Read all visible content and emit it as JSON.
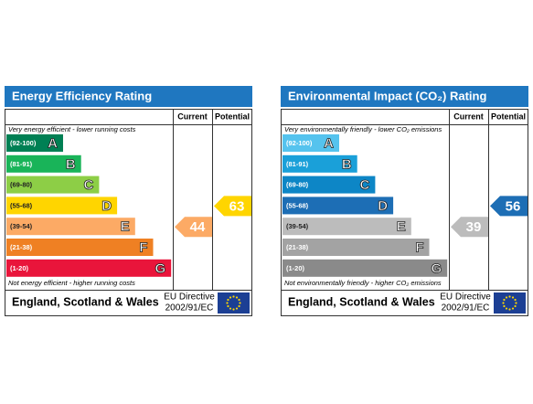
{
  "chart_data": [
    {
      "type": "epc",
      "title": "Energy Efficiency Rating",
      "columns": [
        "Current",
        "Potential"
      ],
      "top_note": "Very energy efficient - lower running costs",
      "bottom_note": "Not energy efficient - higher running costs",
      "categories": [
        "A",
        "B",
        "C",
        "D",
        "E",
        "F",
        "G"
      ],
      "range_labels": [
        "(92-100)",
        "(81-91)",
        "(69-80)",
        "(55-68)",
        "(39-54)",
        "(21-38)",
        "(1-20)"
      ],
      "colors": [
        "#008054",
        "#19b459",
        "#8dce46",
        "#ffd500",
        "#fcaa65",
        "#ef8023",
        "#e9153b"
      ],
      "current": 44,
      "potential": 63,
      "footer": "England, Scotland & Wales",
      "directive": [
        "EU Directive",
        "2002/91/EC"
      ]
    },
    {
      "type": "epc",
      "title": "Environmental Impact (CO₂) Rating",
      "columns": [
        "Current",
        "Potential"
      ],
      "top_note": "Very environmentally friendly - lower CO₂ emissions",
      "bottom_note": "Not environmentally friendly - higher CO₂ emissions",
      "categories": [
        "A",
        "B",
        "C",
        "D",
        "E",
        "F",
        "G"
      ],
      "range_labels": [
        "(92-100)",
        "(81-91)",
        "(69-80)",
        "(55-68)",
        "(39-54)",
        "(21-38)",
        "(1-20)"
      ],
      "colors": [
        "#55c3ee",
        "#1aa0d9",
        "#0d86c6",
        "#1d6eb5",
        "#bcbcbc",
        "#a3a3a3",
        "#8a8a8a"
      ],
      "current": 39,
      "potential": 56,
      "footer": "England, Scotland & Wales",
      "directive": [
        "EU Directive",
        "2002/91/EC"
      ]
    }
  ]
}
